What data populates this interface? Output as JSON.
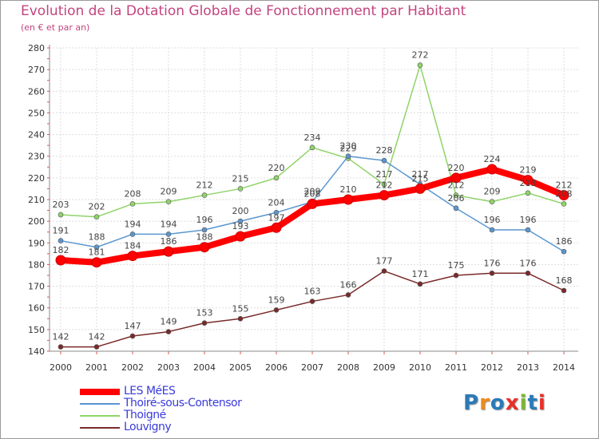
{
  "header": {
    "title": "Evolution de la Dotation Globale de Fonctionnement par Habitant",
    "subtitle": "(en € et par an)"
  },
  "logo": {
    "text": "Proxiti",
    "colors": [
      "#2a7ab8",
      "#f08a1a",
      "#2a7ab8",
      "#e9302a",
      "#7cb82f",
      "#2a7ab8",
      "#e9302a"
    ]
  },
  "chart_data": {
    "type": "line",
    "title": "Evolution de la Dotation Globale de Fonctionnement par Habitant",
    "subtitle": "(en € et par an)",
    "x": [
      "2000",
      "2001",
      "2002",
      "2003",
      "2004",
      "2005",
      "2006",
      "2007",
      "2008",
      "2009",
      "2010",
      "2011",
      "2012",
      "2013",
      "2014"
    ],
    "ylim": [
      140,
      280
    ],
    "yticks": [
      140,
      150,
      160,
      170,
      180,
      190,
      200,
      210,
      220,
      230,
      240,
      250,
      260,
      270,
      280
    ],
    "grid": true,
    "legend_position": "bottom-left",
    "series": [
      {
        "name": "LES MéES",
        "color": "#ff0000",
        "values": [
          182,
          181,
          184,
          186,
          188,
          193,
          197,
          208,
          210,
          212,
          215,
          220,
          224,
          219,
          212
        ]
      },
      {
        "name": "Thoiré-sous-Contensor",
        "color": "#5a96d0",
        "values": [
          191,
          188,
          194,
          194,
          196,
          200,
          204,
          209,
          230,
          228,
          217,
          206,
          196,
          196,
          186
        ]
      },
      {
        "name": "Thoigné",
        "color": "#8fd468",
        "values": [
          203,
          202,
          208,
          209,
          212,
          215,
          220,
          234,
          229,
          217,
          272,
          212,
          209,
          213,
          208
        ]
      },
      {
        "name": "Louvigny",
        "color": "#7a2a2a",
        "values": [
          142,
          142,
          147,
          149,
          153,
          155,
          159,
          163,
          166,
          177,
          171,
          175,
          176,
          176,
          168
        ]
      }
    ]
  }
}
